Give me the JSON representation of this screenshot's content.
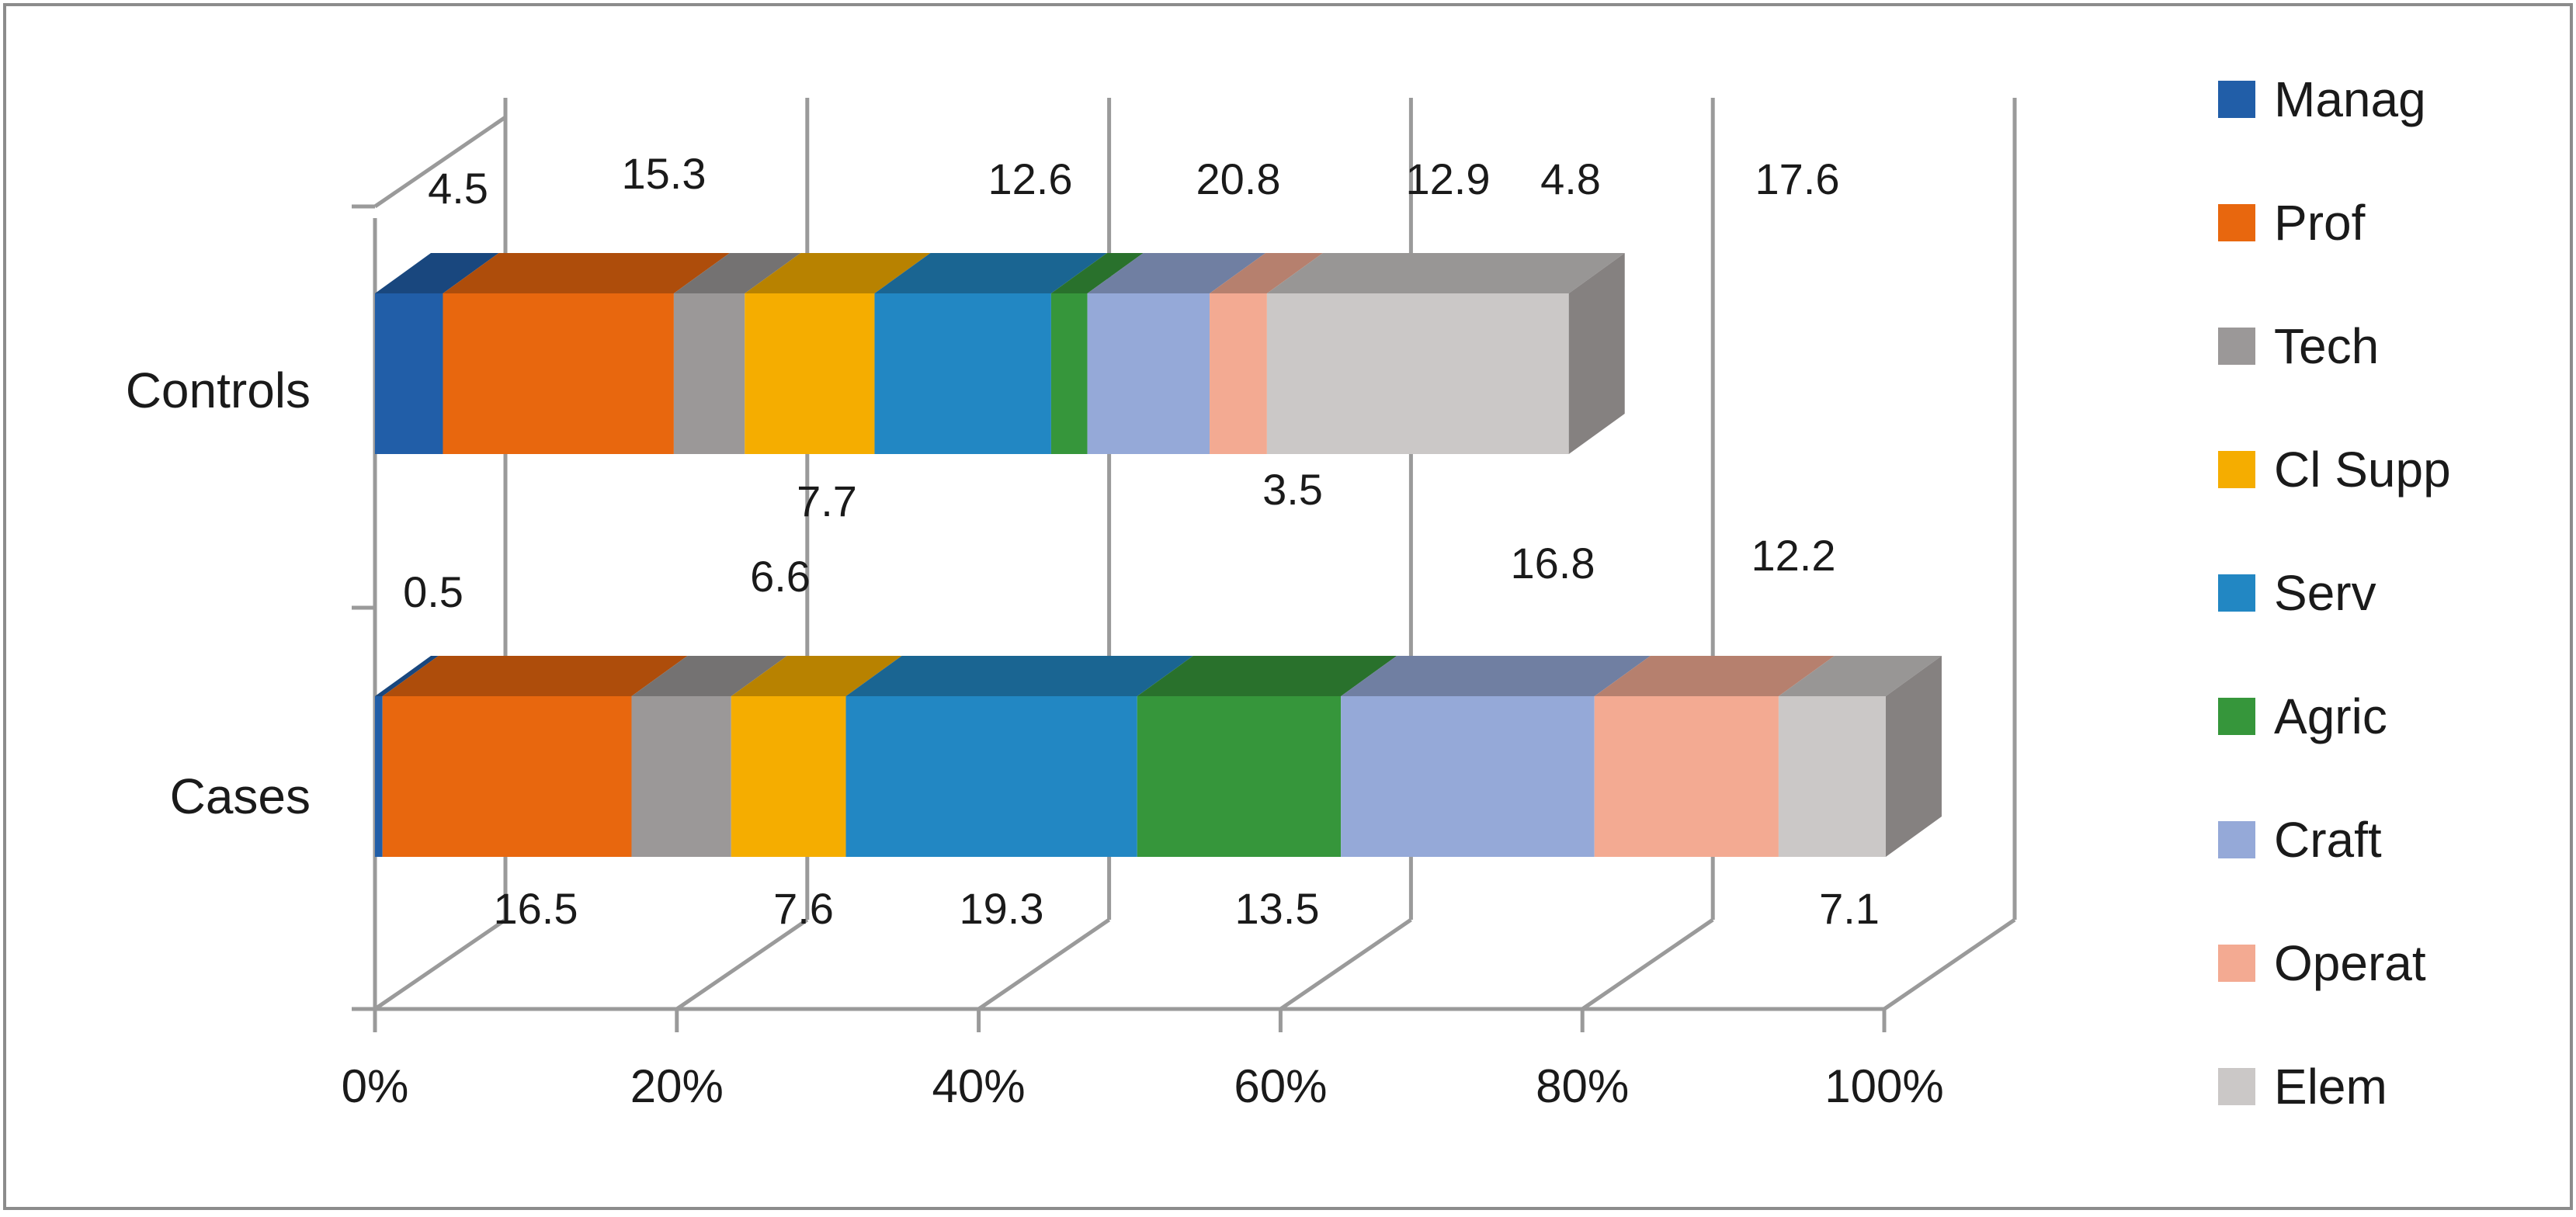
{
  "chart_data": {
    "type": "bar",
    "orientation": "horizontal",
    "stacked": "percent",
    "three_d": true,
    "categories": [
      "Controls",
      "Cases"
    ],
    "xlim": [
      0,
      100
    ],
    "x_ticks": [
      "0%",
      "20%",
      "40%",
      "60%",
      "80%",
      "100%"
    ],
    "legend_position": "right",
    "grid": true,
    "series": [
      {
        "name": "Manag",
        "color": "#215ea8",
        "values": [
          4.5,
          0.5
        ]
      },
      {
        "name": "Prof",
        "color": "#e8670e",
        "values": [
          15.3,
          16.5
        ]
      },
      {
        "name": "Tech",
        "color": "#9b9898",
        "values": [
          4.7,
          6.6
        ]
      },
      {
        "name": "Cl Supp",
        "color": "#f5ad00",
        "values": [
          8.6,
          7.6
        ]
      },
      {
        "name": "Serv",
        "color": "#2287c3",
        "values": [
          11.7,
          19.3
        ]
      },
      {
        "name": "Agric",
        "color": "#36963b",
        "values": [
          2.4,
          13.5
        ]
      },
      {
        "name": "Craft",
        "color": "#95a9d8",
        "values": [
          8.1,
          16.8
        ]
      },
      {
        "name": "Operat",
        "color": "#f3aa92",
        "values": [
          3.8,
          12.2
        ]
      },
      {
        "name": "Elem",
        "color": "#cbc8c7",
        "values": [
          20.0,
          7.1
        ]
      }
    ],
    "data_labels": {
      "Controls": {
        "above": [
          "4.5",
          "15.3",
          "12.6",
          "20.8",
          "12.9",
          "4.8",
          "17.6"
        ],
        "below": [
          "7.7",
          "3.5"
        ]
      },
      "Cases": {
        "above": [
          "0.5",
          "6.6",
          "16.8",
          "12.2"
        ],
        "below": [
          "16.5",
          "7.6",
          "19.3",
          "13.5",
          "7.1"
        ]
      }
    }
  }
}
